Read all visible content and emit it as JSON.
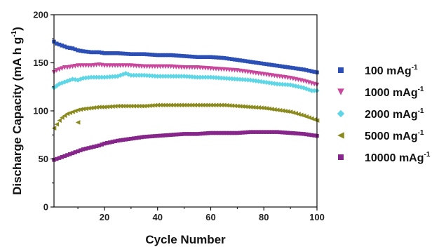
{
  "chart_data": {
    "type": "scatter",
    "xlabel": "Cycle Number",
    "ylabel": "Discharge Capacity (mA h g",
    "ylabel_sup": "-1",
    "ylabel_close": ")",
    "xlim": [
      1,
      100
    ],
    "ylim": [
      0,
      200
    ],
    "x_ticks": [
      20,
      40,
      60,
      80,
      100
    ],
    "y_ticks": [
      0,
      50,
      100,
      150,
      200
    ],
    "grid": false,
    "legend_position": "right",
    "series": [
      {
        "name": "100 mAg",
        "name_sup": "-1",
        "color": "#2b4fb5",
        "marker": "square",
        "x": [
          1,
          2,
          3,
          4,
          5,
          6,
          8,
          10,
          12,
          15,
          18,
          20,
          25,
          30,
          35,
          40,
          45,
          50,
          55,
          60,
          65,
          70,
          75,
          80,
          85,
          90,
          95,
          100
        ],
        "y": [
          172,
          170,
          169,
          168,
          167,
          166,
          165,
          163,
          162,
          161,
          161,
          160,
          160,
          159,
          159,
          158,
          158,
          157,
          156,
          156,
          155,
          153,
          151,
          149,
          147,
          145,
          143,
          140
        ]
      },
      {
        "name": "1000 mAg",
        "name_sup": "-1",
        "color": "#c8469c",
        "marker": "triangle-down",
        "x": [
          1,
          2,
          3,
          4,
          5,
          6,
          8,
          10,
          12,
          15,
          18,
          20,
          25,
          30,
          35,
          40,
          45,
          50,
          55,
          60,
          65,
          70,
          75,
          80,
          85,
          90,
          95,
          100
        ],
        "y": [
          140,
          142,
          143,
          144,
          145,
          145,
          146,
          147,
          147,
          147,
          148,
          147,
          147,
          147,
          146,
          146,
          146,
          145,
          145,
          144,
          143,
          142,
          140,
          138,
          136,
          134,
          131,
          127
        ]
      },
      {
        "name": "2000 mAg",
        "name_sup": "-1",
        "color": "#5ed6e6",
        "marker": "diamond",
        "x": [
          1,
          2,
          3,
          4,
          5,
          6,
          8,
          10,
          12,
          15,
          18,
          20,
          25,
          28,
          30,
          35,
          40,
          45,
          50,
          55,
          60,
          65,
          70,
          75,
          80,
          85,
          90,
          95,
          98,
          100
        ],
        "y": [
          124,
          126,
          128,
          129,
          130,
          131,
          133,
          132,
          134,
          135,
          135,
          135,
          136,
          139,
          137,
          137,
          136,
          136,
          136,
          135,
          135,
          134,
          133,
          132,
          130,
          128,
          127,
          124,
          121,
          121
        ]
      },
      {
        "name": "5000 mAg",
        "name_sup": "-1",
        "color": "#8a8a1e",
        "marker": "triangle-left",
        "x": [
          1,
          2,
          3,
          4,
          5,
          6,
          8,
          10,
          12,
          15,
          18,
          20,
          25,
          30,
          35,
          40,
          45,
          50,
          55,
          60,
          65,
          70,
          75,
          80,
          85,
          90,
          95,
          100
        ],
        "y": [
          82,
          86,
          90,
          93,
          95,
          97,
          99,
          101,
          102,
          103,
          104,
          104,
          105,
          105,
          105,
          106,
          106,
          106,
          106,
          106,
          106,
          105,
          104,
          103,
          101,
          99,
          95,
          90
        ]
      },
      {
        "name": "10000 mAg",
        "name_sup": "-1",
        "color": "#86268a",
        "marker": "square",
        "x": [
          1,
          2,
          3,
          4,
          5,
          6,
          8,
          10,
          12,
          15,
          18,
          20,
          25,
          30,
          35,
          40,
          45,
          50,
          55,
          60,
          65,
          70,
          75,
          80,
          85,
          90,
          95,
          100
        ],
        "y": [
          49,
          50,
          51,
          52,
          53,
          54,
          56,
          58,
          60,
          62,
          64,
          66,
          69,
          71,
          73,
          74,
          75,
          76,
          76,
          77,
          77,
          77,
          78,
          78,
          78,
          77,
          76,
          74
        ]
      }
    ],
    "outliers": [
      {
        "series": 3,
        "x": 10,
        "y": 88
      }
    ]
  }
}
